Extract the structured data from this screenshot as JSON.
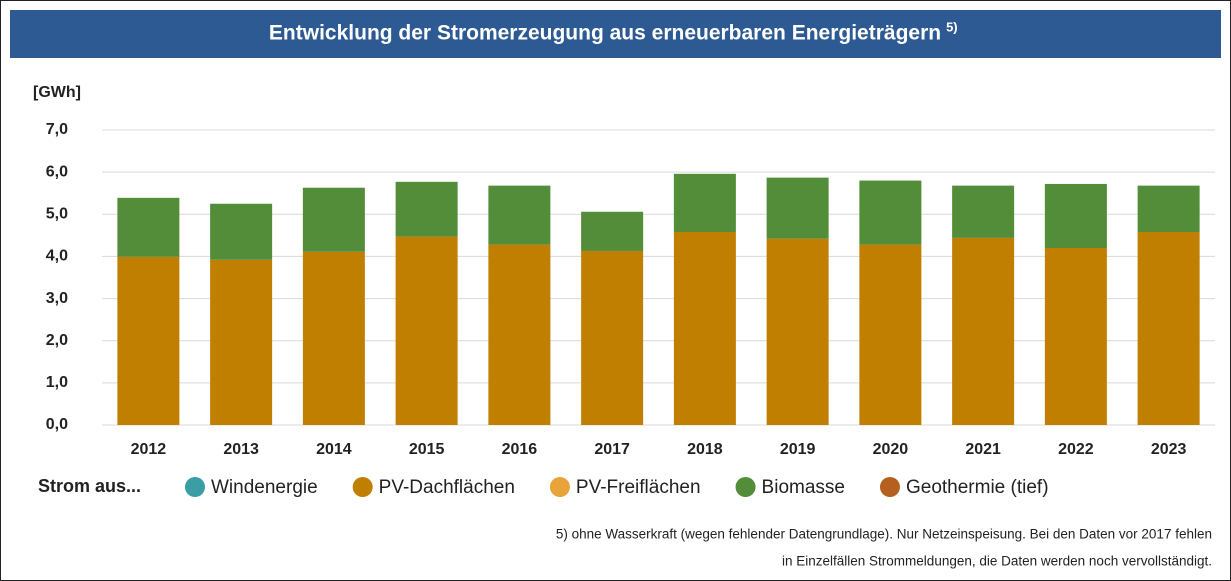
{
  "chart_data": {
    "type": "stacked_bar",
    "title": "Entwicklung der Stromerzeugung aus erneuerbaren Energieträgern",
    "title_note": "5)",
    "y_label": "[GWh]",
    "legend_title": "Strom aus...",
    "footnote": [
      "5) ohne Wasserkraft (wegen fehlender Datengrundlage). Nur Netzeinspeisung. Bei den Daten vor 2017 fehlen",
      "in Einzelfällen Strommeldungen, die Daten werden noch vervollständigt."
    ],
    "categories": [
      "2012",
      "2013",
      "2014",
      "2015",
      "2016",
      "2017",
      "2018",
      "2019",
      "2020",
      "2021",
      "2022",
      "2023"
    ],
    "series": [
      {
        "name": "Windenergie",
        "color": "#3a9ea5",
        "values": [
          0,
          0,
          0,
          0,
          0,
          0,
          0,
          0,
          0,
          0,
          0,
          0
        ]
      },
      {
        "name": "PV-Dachflächen",
        "color": "#c07f00",
        "values": [
          3.99,
          3.92,
          4.11,
          4.47,
          4.28,
          4.13,
          4.58,
          4.42,
          4.28,
          4.44,
          4.2,
          4.58
        ]
      },
      {
        "name": "PV-Freiflächen",
        "color": "#e8a33a",
        "values": [
          0,
          0,
          0,
          0,
          0,
          0,
          0,
          0,
          0,
          0,
          0,
          0
        ]
      },
      {
        "name": "Biomasse",
        "color": "#538d3a",
        "values": [
          1.4,
          1.33,
          1.52,
          1.3,
          1.4,
          0.93,
          1.38,
          1.45,
          1.52,
          1.24,
          1.52,
          1.1
        ]
      },
      {
        "name": "Geothermie (tief)",
        "color": "#b5601e",
        "values": [
          0,
          0,
          0,
          0,
          0,
          0,
          0,
          0,
          0,
          0,
          0,
          0
        ]
      }
    ],
    "ylim": [
      0,
      7
    ],
    "yticks": [
      {
        "value": 0,
        "label": "0,0"
      },
      {
        "value": 1,
        "label": "1,0"
      },
      {
        "value": 2,
        "label": "2,0"
      },
      {
        "value": 3,
        "label": "3,0"
      },
      {
        "value": 4,
        "label": "4,0"
      },
      {
        "value": 5,
        "label": "5,0"
      },
      {
        "value": 6,
        "label": "6,0"
      },
      {
        "value": 7,
        "label": "7,0"
      }
    ],
    "grid": true
  }
}
